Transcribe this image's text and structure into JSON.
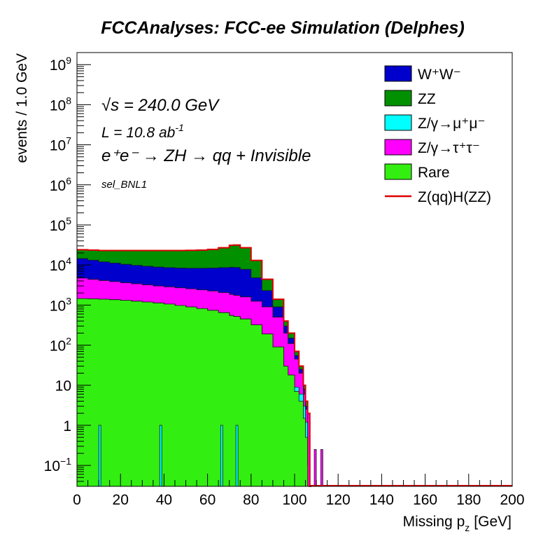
{
  "chart_data": {
    "type": "area",
    "title": "FCCAnalyses: FCC-ee Simulation (Delphes)",
    "xlabel": "Missing p",
    "xlabel_sub": "z",
    "xlabel_unit": "[GeV]",
    "ylabel": "events / 1.0 GeV",
    "xlim": [
      0,
      200
    ],
    "ylim": [
      0.03,
      2000000000
    ],
    "yscale": "log",
    "stacked": true,
    "x_ticks": [
      "0",
      "20",
      "40",
      "60",
      "80",
      "100",
      "120",
      "140",
      "160",
      "180",
      "200"
    ],
    "y_ticks": [
      {
        "base": "10",
        "exp": "−1",
        "value": 0.1
      },
      {
        "base": "1",
        "exp": "",
        "value": 1
      },
      {
        "base": "10",
        "exp": "",
        "value": 10
      },
      {
        "base": "10",
        "exp": "2",
        "value": 100
      },
      {
        "base": "10",
        "exp": "3",
        "value": 1000
      },
      {
        "base": "10",
        "exp": "4",
        "value": 10000
      },
      {
        "base": "10",
        "exp": "5",
        "value": 100000
      },
      {
        "base": "10",
        "exp": "6",
        "value": 1000000
      },
      {
        "base": "10",
        "exp": "7",
        "value": 10000000
      },
      {
        "base": "10",
        "exp": "8",
        "value": 100000000
      },
      {
        "base": "10",
        "exp": "9",
        "value": 1000000000
      }
    ],
    "annotations": {
      "sqrt_s_symbol": "√s",
      "sqrt_s": " = 240.0 GeV",
      "lumi_prefix": "L = 10.8 ab",
      "lumi_exp": "-1",
      "process": "e⁺e⁻ → ZH → qq + Invisible",
      "selection": "sel_BNL1"
    },
    "legend": {
      "placement": "top-right",
      "entries": [
        {
          "label": "W⁺W⁻",
          "color": "#0000cc",
          "kind": "fill"
        },
        {
          "label": "ZZ",
          "color": "#009000",
          "kind": "fill"
        },
        {
          "label": "Z/γ→μ⁺μ⁻",
          "color": "#00ffff",
          "kind": "fill"
        },
        {
          "label": "Z/γ→τ⁺τ⁻",
          "color": "#ff00ff",
          "kind": "fill"
        },
        {
          "label": "Rare",
          "color": "#33ee11",
          "kind": "fill"
        },
        {
          "label": "Z(qq)H(ZZ)",
          "color": "#dd0000",
          "kind": "line"
        }
      ]
    },
    "x": [
      0,
      5,
      10,
      15,
      20,
      25,
      30,
      35,
      40,
      45,
      50,
      55,
      60,
      65,
      70,
      72,
      75,
      80,
      85,
      90,
      95,
      97,
      100,
      102,
      104,
      105,
      106,
      107
    ],
    "stack_totals": [
      {
        "name": "Rare",
        "color": "#33ee11",
        "values": [
          1450,
          1430,
          1400,
          1360,
          1310,
          1250,
          1190,
          1130,
          1060,
          980,
          900,
          820,
          740,
          650,
          550,
          520,
          450,
          320,
          190,
          90,
          30,
          18,
          7,
          4,
          1.5,
          0.5,
          0.1,
          0.03
        ]
      },
      {
        "name": "Z/γ→μ⁺μ⁻",
        "color": "#00ffff",
        "values": [
          1450,
          1430,
          1400,
          1360,
          1310,
          1250,
          1190,
          1130,
          1060,
          980,
          900,
          820,
          740,
          650,
          550,
          520,
          450,
          320,
          190,
          90,
          30,
          18,
          9,
          6,
          3,
          1.2,
          0.1,
          0.03
        ]
      },
      {
        "name": "Z/γ→τ⁺τ⁻",
        "color": "#ff00ff",
        "values": [
          4700,
          4400,
          4100,
          3850,
          3600,
          3400,
          3200,
          3000,
          2850,
          2700,
          2550,
          2400,
          2250,
          2050,
          1850,
          1750,
          1600,
          1250,
          900,
          500,
          200,
          110,
          45,
          20,
          6,
          2.5,
          1,
          0.03
        ]
      },
      {
        "name": "W⁺W⁻",
        "color": "#0000cc",
        "values": [
          14500,
          13200,
          12000,
          11200,
          10400,
          9800,
          9300,
          8900,
          8600,
          8400,
          8300,
          8300,
          8400,
          8600,
          8800,
          8700,
          7800,
          4800,
          2300,
          900,
          300,
          150,
          55,
          25,
          8,
          3,
          1.5,
          0.03
        ]
      },
      {
        "name": "ZZ",
        "color": "#009000",
        "values": [
          24000,
          23500,
          23000,
          23000,
          23000,
          23000,
          23000,
          23000,
          23000,
          23000,
          23200,
          23500,
          24500,
          27000,
          31000,
          31500,
          27000,
          13000,
          4400,
          1400,
          400,
          200,
          70,
          30,
          10,
          4,
          2,
          0.03
        ]
      }
    ],
    "signal": {
      "name": "Z(qq)H(ZZ)",
      "color": "#dd0000"
    },
    "spikes": [
      {
        "x": 10.5,
        "value": 1,
        "color": "#00ffff"
      },
      {
        "x": 38.5,
        "value": 1,
        "color": "#00ffff"
      },
      {
        "x": 66.5,
        "value": 1,
        "color": "#00ffff"
      },
      {
        "x": 73.5,
        "value": 1,
        "color": "#00ffff"
      },
      {
        "x": 106.5,
        "value": 2,
        "color": "#ff00ff"
      },
      {
        "x": 109.5,
        "value": 0.25,
        "color": "#ff00ff"
      },
      {
        "x": 112.5,
        "value": 0.25,
        "color": "#ff00ff"
      }
    ]
  }
}
